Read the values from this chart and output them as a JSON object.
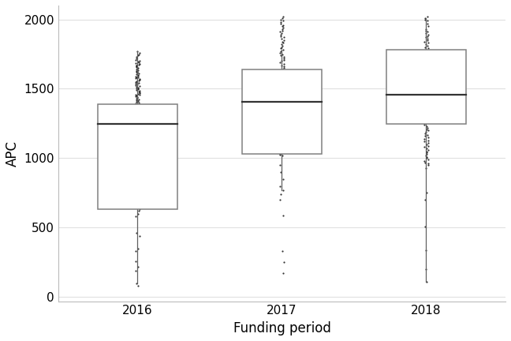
{
  "categories": [
    "2016",
    "2017",
    "2018"
  ],
  "box_stats": [
    {
      "year": "2016",
      "whisker_low": 100,
      "q1": 635,
      "median": 1245,
      "q3": 1390,
      "whisker_high": 1770
    },
    {
      "year": "2017",
      "whisker_low": 770,
      "q1": 1030,
      "median": 1405,
      "q3": 1640,
      "whisker_high": 1780
    },
    {
      "year": "2018",
      "whisker_low": 110,
      "q1": 1245,
      "median": 1460,
      "q3": 1780,
      "whisker_high": 2010
    }
  ],
  "scatter_points": {
    "2016": [
      1770,
      1760,
      1750,
      1740,
      1730,
      1720,
      1710,
      1700,
      1695,
      1690,
      1685,
      1680,
      1675,
      1670,
      1665,
      1660,
      1655,
      1650,
      1645,
      1640,
      1635,
      1630,
      1625,
      1620,
      1615,
      1610,
      1605,
      1600,
      1595,
      1590,
      1585,
      1580,
      1575,
      1570,
      1565,
      1560,
      1555,
      1550,
      1545,
      1540,
      1535,
      1530,
      1525,
      1520,
      1515,
      1510,
      1505,
      1500,
      1495,
      1490,
      1485,
      1480,
      1475,
      1470,
      1465,
      1460,
      1455,
      1450,
      1445,
      1440,
      1435,
      1430,
      1425,
      1420,
      1415,
      1410,
      1405,
      1400,
      1395,
      1390,
      1385,
      1380,
      1375,
      1370,
      1365,
      1360,
      1355,
      1350,
      1345,
      1340,
      1335,
      1330,
      1325,
      1320,
      1315,
      1310,
      1305,
      1300,
      1295,
      1290,
      1285,
      1280,
      1275,
      1270,
      1265,
      1260,
      1255,
      1250,
      1245,
      1240,
      1235,
      1230,
      1225,
      1220,
      1215,
      1210,
      1205,
      1200,
      1195,
      1190,
      1185,
      1180,
      1175,
      1170,
      1165,
      1160,
      1155,
      1150,
      1145,
      1140,
      1135,
      1130,
      1125,
      1120,
      1115,
      1110,
      1105,
      1100,
      1095,
      1090,
      1085,
      1080,
      1075,
      1070,
      1065,
      1060,
      1055,
      1050,
      1045,
      1040,
      1035,
      1030,
      1025,
      1020,
      1015,
      1010,
      1005,
      1000,
      995,
      990,
      985,
      980,
      975,
      970,
      965,
      960,
      955,
      950,
      945,
      940,
      935,
      930,
      925,
      920,
      915,
      910,
      905,
      900,
      895,
      890,
      885,
      880,
      875,
      870,
      865,
      860,
      855,
      850,
      840,
      830,
      820,
      810,
      800,
      790,
      780,
      770,
      760,
      750,
      740,
      730,
      720,
      710,
      700,
      690,
      680,
      670,
      660,
      650,
      635,
      620,
      600,
      580,
      460,
      440,
      350,
      330,
      260,
      220,
      190,
      100,
      80
    ],
    "2017": [
      2020,
      2010,
      2000,
      1990,
      1980,
      1970,
      1960,
      1950,
      1940,
      1930,
      1920,
      1910,
      1900,
      1890,
      1880,
      1870,
      1860,
      1850,
      1840,
      1830,
      1820,
      1810,
      1800,
      1790,
      1780,
      1770,
      1760,
      1750,
      1740,
      1730,
      1720,
      1710,
      1700,
      1690,
      1680,
      1670,
      1660,
      1650,
      1640,
      1635,
      1630,
      1625,
      1620,
      1615,
      1610,
      1605,
      1600,
      1595,
      1590,
      1585,
      1580,
      1575,
      1570,
      1565,
      1560,
      1555,
      1550,
      1545,
      1540,
      1535,
      1530,
      1525,
      1520,
      1515,
      1510,
      1505,
      1500,
      1495,
      1490,
      1485,
      1480,
      1475,
      1470,
      1465,
      1460,
      1455,
      1450,
      1445,
      1440,
      1435,
      1430,
      1425,
      1420,
      1415,
      1410,
      1405,
      1400,
      1395,
      1390,
      1385,
      1380,
      1375,
      1370,
      1365,
      1360,
      1355,
      1350,
      1345,
      1340,
      1335,
      1330,
      1325,
      1320,
      1315,
      1310,
      1305,
      1300,
      1295,
      1290,
      1285,
      1280,
      1275,
      1270,
      1265,
      1260,
      1255,
      1250,
      1245,
      1240,
      1235,
      1230,
      1225,
      1220,
      1215,
      1210,
      1205,
      1200,
      1195,
      1190,
      1185,
      1180,
      1175,
      1170,
      1165,
      1160,
      1155,
      1150,
      1145,
      1140,
      1135,
      1130,
      1125,
      1120,
      1115,
      1110,
      1105,
      1100,
      1095,
      1090,
      1085,
      1080,
      1075,
      1070,
      1065,
      1060,
      1055,
      1050,
      1045,
      1040,
      1035,
      1030,
      1025,
      1020,
      950,
      900,
      850,
      800,
      770,
      740,
      700,
      590,
      330,
      250,
      170
    ],
    "2018": [
      2020,
      2010,
      2000,
      1990,
      1970,
      1950,
      1930,
      1920,
      1910,
      1900,
      1890,
      1880,
      1870,
      1860,
      1850,
      1840,
      1830,
      1820,
      1810,
      1800,
      1790,
      1780,
      1770,
      1760,
      1750,
      1740,
      1730,
      1720,
      1710,
      1700,
      1690,
      1680,
      1670,
      1660,
      1650,
      1640,
      1630,
      1620,
      1610,
      1600,
      1590,
      1580,
      1570,
      1560,
      1550,
      1540,
      1530,
      1520,
      1510,
      1500,
      1490,
      1480,
      1470,
      1460,
      1450,
      1440,
      1430,
      1420,
      1410,
      1400,
      1390,
      1380,
      1370,
      1360,
      1350,
      1340,
      1330,
      1320,
      1310,
      1300,
      1290,
      1280,
      1270,
      1260,
      1250,
      1240,
      1230,
      1220,
      1210,
      1200,
      1190,
      1180,
      1170,
      1160,
      1150,
      1140,
      1130,
      1120,
      1110,
      1100,
      1090,
      1080,
      1070,
      1060,
      1050,
      1040,
      1030,
      1020,
      1010,
      1000,
      990,
      980,
      970,
      960,
      950,
      930,
      750,
      700,
      510,
      340,
      200,
      110
    ]
  },
  "ylabel": "APC",
  "xlabel": "Funding period",
  "ylim": [
    -30,
    2100
  ],
  "yticks": [
    0,
    500,
    1000,
    1500,
    2000
  ],
  "box_color": "white",
  "box_edge_color": "#808080",
  "median_color": "#333333",
  "whisker_color": "#606060",
  "scatter_color": "#111111",
  "scatter_alpha": 0.85,
  "scatter_size": 2.5,
  "scatter_jitter": 0.015,
  "bg_color": "white",
  "grid_color": "#e0e0e0",
  "box_width": 0.55,
  "label_fontsize": 12,
  "tick_fontsize": 11
}
